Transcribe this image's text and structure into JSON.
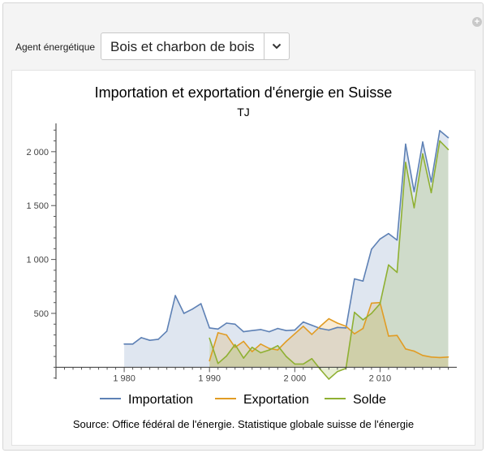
{
  "control": {
    "label": "Agent énergétique",
    "selected": "Bois et charbon de bois",
    "icon": "chevron-down-icon",
    "corner_icon": "plus-circle-icon"
  },
  "chart_data": {
    "type": "area",
    "title": "Importation et exportation d'énergie en Suisse",
    "subtitle": "TJ",
    "xlabel": "",
    "ylabel": "",
    "xlim": [
      1972,
      2019
    ],
    "ylim": [
      -110,
      2300
    ],
    "xticks": [
      1980,
      1990,
      2000,
      2010
    ],
    "xtick_labels": [
      "1 980",
      "1 990",
      "2 000",
      "2 010"
    ],
    "yticks": [
      500,
      1000,
      1500,
      2000
    ],
    "ytick_labels": [
      "500",
      "1 000",
      "1 500",
      "2 000"
    ],
    "x": [
      1980,
      1981,
      1982,
      1983,
      1984,
      1985,
      1986,
      1987,
      1988,
      1989,
      1990,
      1991,
      1992,
      1993,
      1994,
      1995,
      1996,
      1997,
      1998,
      1999,
      2000,
      2001,
      2002,
      2003,
      2004,
      2005,
      2006,
      2007,
      2008,
      2009,
      2010,
      2011,
      2012,
      2013,
      2014,
      2015,
      2016,
      2017,
      2018
    ],
    "series": [
      {
        "name": "Importation",
        "color": "#5e81b5",
        "values": [
          215,
          215,
          275,
          250,
          260,
          335,
          665,
          500,
          540,
          590,
          365,
          355,
          410,
          400,
          330,
          340,
          350,
          330,
          360,
          340,
          345,
          420,
          390,
          360,
          345,
          370,
          365,
          820,
          800,
          1095,
          1190,
          1240,
          1180,
          2070,
          1630,
          2090,
          1720,
          2195,
          2130
        ]
      },
      {
        "name": "Exportation",
        "color": "#e19c24",
        "values": [
          null,
          null,
          null,
          null,
          null,
          null,
          null,
          null,
          null,
          null,
          60,
          320,
          300,
          185,
          240,
          145,
          215,
          175,
          160,
          240,
          310,
          380,
          305,
          380,
          450,
          410,
          380,
          310,
          360,
          595,
          600,
          290,
          295,
          170,
          150,
          110,
          95,
          90,
          95
        ]
      },
      {
        "name": "Solde",
        "color": "#8fb032",
        "values": [
          null,
          null,
          null,
          null,
          null,
          null,
          null,
          null,
          null,
          null,
          270,
          35,
          105,
          210,
          85,
          185,
          135,
          160,
          200,
          100,
          30,
          30,
          80,
          -20,
          -110,
          -40,
          -10,
          510,
          440,
          500,
          590,
          950,
          880,
          1900,
          1480,
          1980,
          1620,
          2100,
          2020
        ]
      }
    ],
    "legend_position": "bottom",
    "source": "Source: Office fédéral de l'énergie. Statistique globale suisse de l'énergie"
  }
}
